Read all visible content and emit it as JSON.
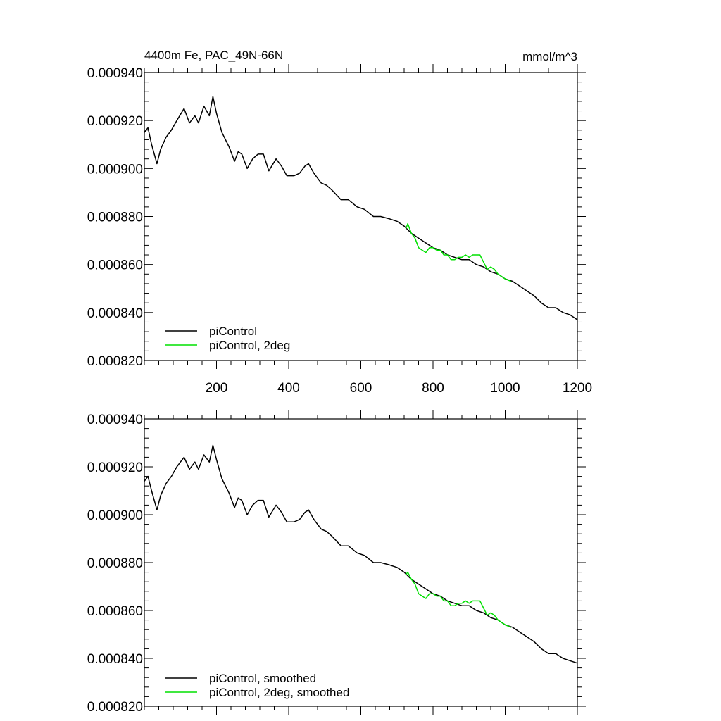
{
  "figure": {
    "title_left": "4400m Fe, PAC_49N-66N",
    "title_right": "mmol/m^3"
  },
  "colors": {
    "series_black": "#000000",
    "series_green": "#00e000",
    "axis": "#000000",
    "background": "#ffffff"
  },
  "chart_data": [
    {
      "type": "line",
      "title": "4400m Fe, PAC_49N-66N",
      "units": "mmol/m^3",
      "xlabel": "",
      "ylabel": "",
      "xlim": [
        0,
        1200
      ],
      "ylim": [
        0.00082,
        0.00094
      ],
      "xticks": [
        200,
        400,
        600,
        800,
        1000,
        1200
      ],
      "xtick_labels": [
        "200",
        "400",
        "600",
        "800",
        "1000",
        "1200"
      ],
      "yticks": [
        0.00082,
        0.00084,
        0.00086,
        0.00088,
        0.0009,
        0.00092,
        0.00094
      ],
      "ytick_labels": [
        "0.000820",
        "0.000840",
        "0.000860",
        "0.000880",
        "0.000900",
        "0.000920",
        "0.000940"
      ],
      "grid": false,
      "legend_position": "bottom-left",
      "smoothed": false,
      "series": [
        {
          "name": "piControl",
          "color": "#000000",
          "x": [
            0,
            10,
            20,
            35,
            45,
            60,
            75,
            90,
            110,
            125,
            140,
            150,
            165,
            180,
            190,
            200,
            215,
            235,
            250,
            260,
            270,
            285,
            300,
            315,
            330,
            345,
            365,
            380,
            395,
            415,
            430,
            445,
            455,
            470,
            490,
            505,
            520,
            545,
            565,
            590,
            610,
            635,
            655,
            680,
            700,
            720,
            740,
            760,
            780,
            800,
            820,
            840,
            860,
            880,
            900,
            920,
            940,
            960,
            980,
            1000,
            1020,
            1040,
            1060,
            1080,
            1100,
            1120,
            1140,
            1160,
            1180,
            1200
          ],
          "y": [
            0.000915,
            0.000917,
            0.00091,
            0.000902,
            0.000908,
            0.000913,
            0.000916,
            0.00092,
            0.000925,
            0.000919,
            0.000922,
            0.000919,
            0.000926,
            0.000922,
            0.00093,
            0.000923,
            0.000915,
            0.000909,
            0.000903,
            0.000907,
            0.000906,
            0.0009,
            0.000904,
            0.000906,
            0.000906,
            0.000899,
            0.000904,
            0.000901,
            0.000897,
            0.000897,
            0.000898,
            0.000901,
            0.000902,
            0.000898,
            0.000894,
            0.000893,
            0.000891,
            0.000887,
            0.000887,
            0.000884,
            0.000883,
            0.00088,
            0.00088,
            0.000879,
            0.000878,
            0.000876,
            0.000873,
            0.000871,
            0.000869,
            0.000867,
            0.000866,
            0.000864,
            0.000863,
            0.000862,
            0.000862,
            0.00086,
            0.000859,
            0.000857,
            0.000856,
            0.000854,
            0.000853,
            0.000851,
            0.000849,
            0.000847,
            0.000844,
            0.000842,
            0.000842,
            0.00084,
            0.000839,
            0.000837
          ]
        },
        {
          "name": "piControl, 2deg",
          "color": "#00e000",
          "x": [
            725,
            730,
            740,
            750,
            760,
            770,
            780,
            790,
            800,
            810,
            820,
            830,
            840,
            850,
            860,
            870,
            880,
            890,
            900,
            910,
            920,
            930,
            940,
            950,
            960,
            970,
            980,
            990,
            1000,
            1015
          ],
          "y": [
            0.000875,
            0.000877,
            0.000873,
            0.000871,
            0.000867,
            0.000866,
            0.000865,
            0.000867,
            0.000867,
            0.000866,
            0.000866,
            0.000864,
            0.000864,
            0.000862,
            0.000862,
            0.000863,
            0.000863,
            0.000864,
            0.000863,
            0.000864,
            0.000864,
            0.000864,
            0.000861,
            0.000858,
            0.000859,
            0.000858,
            0.000856,
            0.000855,
            0.000854,
            0.000853
          ]
        }
      ]
    },
    {
      "type": "line",
      "title": "",
      "xlabel": "",
      "ylabel": "",
      "xlim": [
        0,
        1200
      ],
      "ylim": [
        0.00082,
        0.00094
      ],
      "yticks": [
        0.00082,
        0.00084,
        0.00086,
        0.00088,
        0.0009,
        0.00092,
        0.00094
      ],
      "ytick_labels": [
        "0.000820",
        "0.000840",
        "0.000860",
        "0.000880",
        "0.000900",
        "0.000920",
        "0.000940"
      ],
      "grid": false,
      "legend_position": "bottom-left",
      "smoothed": true,
      "series": [
        {
          "name": "piControl, smoothed",
          "color": "#000000",
          "x": [
            0,
            10,
            20,
            35,
            45,
            60,
            75,
            90,
            110,
            125,
            140,
            150,
            165,
            180,
            190,
            200,
            215,
            235,
            250,
            260,
            270,
            285,
            300,
            315,
            330,
            345,
            365,
            380,
            395,
            415,
            430,
            445,
            455,
            470,
            490,
            505,
            520,
            545,
            565,
            590,
            610,
            635,
            655,
            680,
            700,
            720,
            740,
            760,
            780,
            800,
            820,
            840,
            860,
            880,
            900,
            920,
            940,
            960,
            980,
            1000,
            1020,
            1040,
            1060,
            1080,
            1100,
            1120,
            1140,
            1160,
            1180,
            1200
          ],
          "y": [
            0.000914,
            0.000916,
            0.00091,
            0.000902,
            0.000908,
            0.000913,
            0.000916,
            0.00092,
            0.000924,
            0.000919,
            0.000922,
            0.000919,
            0.000925,
            0.000922,
            0.000929,
            0.000923,
            0.000915,
            0.000909,
            0.000903,
            0.000907,
            0.000906,
            0.0009,
            0.000904,
            0.000906,
            0.000906,
            0.000899,
            0.000904,
            0.000901,
            0.000897,
            0.000897,
            0.000898,
            0.000901,
            0.000902,
            0.000898,
            0.000894,
            0.000893,
            0.000891,
            0.000887,
            0.000887,
            0.000884,
            0.000883,
            0.00088,
            0.00088,
            0.000879,
            0.000878,
            0.000876,
            0.000873,
            0.000871,
            0.000869,
            0.000867,
            0.000866,
            0.000864,
            0.000863,
            0.000862,
            0.000862,
            0.00086,
            0.000859,
            0.000857,
            0.000856,
            0.000854,
            0.000853,
            0.000851,
            0.000849,
            0.000847,
            0.000844,
            0.000842,
            0.000842,
            0.00084,
            0.000839,
            0.000838
          ]
        },
        {
          "name": "piControl, 2deg, smoothed",
          "color": "#00e000",
          "x": [
            725,
            730,
            740,
            750,
            760,
            770,
            780,
            790,
            800,
            810,
            820,
            830,
            840,
            850,
            860,
            870,
            880,
            890,
            900,
            910,
            920,
            930,
            940,
            950,
            960,
            970,
            980,
            990,
            1000,
            1015
          ],
          "y": [
            0.000875,
            0.000876,
            0.000873,
            0.000871,
            0.000867,
            0.000866,
            0.000865,
            0.000867,
            0.000867,
            0.000866,
            0.000866,
            0.000864,
            0.000864,
            0.000862,
            0.000862,
            0.000863,
            0.000863,
            0.000864,
            0.000863,
            0.000864,
            0.000864,
            0.000864,
            0.000861,
            0.000858,
            0.000859,
            0.000858,
            0.000856,
            0.000855,
            0.000854,
            0.000853
          ]
        }
      ]
    }
  ]
}
